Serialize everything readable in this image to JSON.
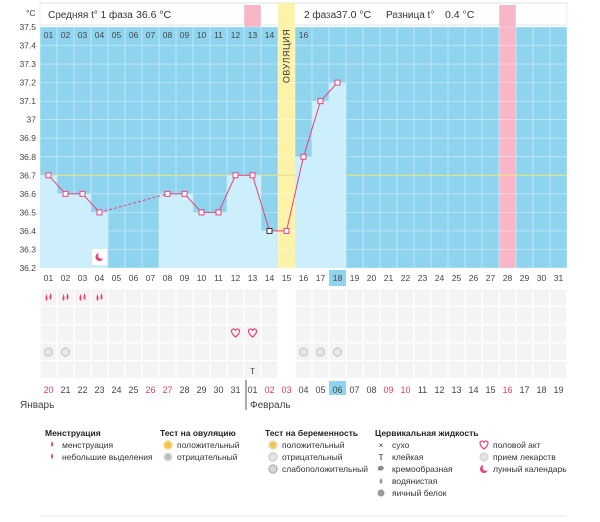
{
  "header": {
    "phase1_label": "Средняя t° 1 фаза",
    "phase1_value": "36.6 °C",
    "phase2_label": "2 фаза",
    "phase2_value": "37.0 °C",
    "diff_label": "Разница t°",
    "diff_value": "0.4 °C"
  },
  "y_unit": "°C",
  "ovulation_label": "ОВУЛЯЦИЯ",
  "months": {
    "first": "Январь",
    "second": "Февраль"
  },
  "chart_data": {
    "type": "line",
    "title": "",
    "ylabel": "°C",
    "ylim": [
      36.2,
      37.5
    ],
    "yticks": [
      "36.2",
      "36.3",
      "36.4",
      "36.5",
      "36.6",
      "36.7",
      "36.8",
      "36.9",
      "37",
      "37.1",
      "37.2",
      "37.3",
      "37.4",
      "37.5"
    ],
    "cycle_days": [
      "01",
      "02",
      "03",
      "04",
      "05",
      "06",
      "07",
      "08",
      "09",
      "10",
      "11",
      "12",
      "13",
      "14",
      "15",
      "16",
      "17",
      "18",
      "19",
      "20",
      "21",
      "22",
      "23",
      "24",
      "25",
      "26",
      "27",
      "28",
      "29",
      "30",
      "31"
    ],
    "top_days": [
      "01",
      "02",
      "03",
      "04",
      "05",
      "06",
      "07",
      "08",
      "09",
      "10",
      "11",
      "12",
      "13",
      "14",
      "15",
      "16"
    ],
    "calendar_dates": [
      "20",
      "21",
      "22",
      "23",
      "24",
      "25",
      "26",
      "27",
      "28",
      "29",
      "30",
      "31",
      "01",
      "02",
      "03",
      "04",
      "05",
      "06",
      "07",
      "08",
      "09",
      "10",
      "11",
      "12",
      "13",
      "14",
      "15",
      "16",
      "17",
      "18",
      "19"
    ],
    "calendar_red": [
      "20",
      "26",
      "27",
      "02",
      "03",
      "09",
      "10",
      "16"
    ],
    "temperatures": [
      36.7,
      36.6,
      36.6,
      36.5,
      null,
      null,
      null,
      36.6,
      36.6,
      36.5,
      36.5,
      36.7,
      36.7,
      36.4,
      36.4,
      36.8,
      37.1,
      37.2,
      null,
      null,
      null,
      null,
      null,
      null,
      null,
      null,
      null,
      null,
      null,
      null,
      null
    ],
    "coverline": 36.7,
    "ovulation_day": "15",
    "today_day": "18",
    "expected_period_day": "28",
    "highlight_top_day": "13",
    "menstruation_days": [
      "01",
      "02",
      "03",
      "04"
    ],
    "moon_days": [
      "04"
    ],
    "sex_days": [
      "12",
      "13"
    ],
    "pregnancy_test_negative_days": [
      "01",
      "02",
      "16",
      "17",
      "18"
    ],
    "sticky_days": [
      "13"
    ]
  },
  "legend": {
    "menstruation": {
      "title": "Менструация",
      "items": [
        "менструация",
        "небольшие выделения"
      ]
    },
    "ovulation_test": {
      "title": "Тест на овуляцию",
      "items": [
        "положительный",
        "отрицательный"
      ]
    },
    "pregnancy_test": {
      "title": "Тест на беременность",
      "items": [
        "положительный",
        "отрицательный",
        "слабоположительный"
      ]
    },
    "cervical": {
      "title": "Цервикальная жидкость",
      "items": [
        "сухо",
        "клейкая",
        "кремообразная",
        "водянистая",
        "яичный белок"
      ]
    },
    "other": {
      "items": [
        "половой акт",
        "прием лекарств",
        "лунный календарь"
      ]
    }
  },
  "colors": {
    "sky": "#8fd4ef",
    "bar": "#cdeefb",
    "line": "#e8417a",
    "ovulation": "#fdf3a8",
    "pink": "#f8b6c6",
    "today": "#8fd4ef",
    "coverline": "#e8e47a",
    "red_text": "#e23c6a"
  }
}
